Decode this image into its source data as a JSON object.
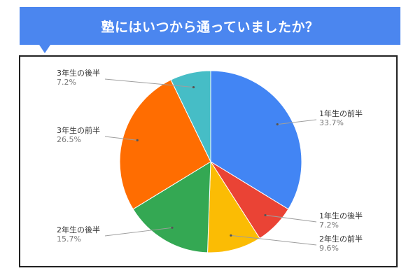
{
  "chart_data": {
    "type": "pie",
    "title": "塾にはいつから通っていましたか？",
    "slices": [
      {
        "label": "1年生の前半",
        "value": 33.7,
        "display": "33.7%",
        "color": "#4285f4"
      },
      {
        "label": "1年生の後半",
        "value": 7.2,
        "display": "7.2%",
        "color": "#ea4335"
      },
      {
        "label": "2年生の前半",
        "value": 9.6,
        "display": "9.6%",
        "color": "#fbbc04"
      },
      {
        "label": "2年生の後半",
        "value": 15.7,
        "display": "15.7%",
        "color": "#34a853"
      },
      {
        "label": "3年生の前半",
        "value": 26.5,
        "display": "26.5%",
        "color": "#ff6d01"
      },
      {
        "label": "3年生の後半",
        "value": 7.2,
        "display": "7.2%",
        "color": "#46bdc6"
      }
    ],
    "start_angle": "top",
    "direction": "clockwise",
    "legend": "none",
    "labels": "outside-with-leader-lines"
  },
  "colors": {
    "banner": "#4b86ef",
    "banner_text": "#ffffff",
    "frame_border": "#222222"
  }
}
